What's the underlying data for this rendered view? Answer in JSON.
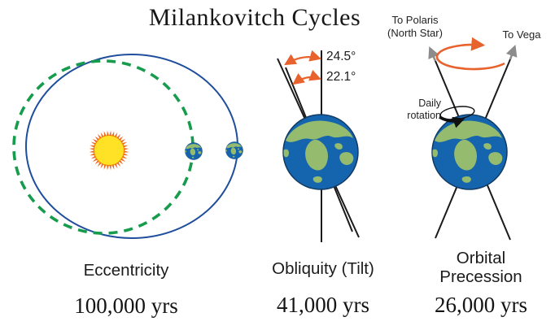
{
  "title": "Milankovitch Cycles",
  "panels": {
    "eccentricity": {
      "name": "Eccentricity",
      "period": "100,000 yrs"
    },
    "obliquity": {
      "name": "Obliquity (Tilt)",
      "period": "41,000 yrs",
      "max_tilt": "24.5°",
      "min_tilt": "22.1°"
    },
    "precession": {
      "name_line1": "Orbital",
      "name_line2": "Precession",
      "period": "26,000 yrs",
      "polaris_label_line1": "To Polaris",
      "polaris_label_line2": "(North Star)",
      "vega_label": "To Vega",
      "rotation_label_line1": "Daily",
      "rotation_label_line2": "rotation"
    }
  },
  "colors": {
    "circular_orbit_blue": "#1f4e9c",
    "eccentric_orbit_green": "#169c4c",
    "sun_yellow": "#ffe226",
    "sun_ray_orange": "#ee6b24",
    "arrow_orange": "#e8622d",
    "arrow_gray": "#8c8c8c",
    "earth_ocean_blue": "#1565ae",
    "earth_land_green": "#95bb6e",
    "line_black": "#1a1a1a"
  }
}
